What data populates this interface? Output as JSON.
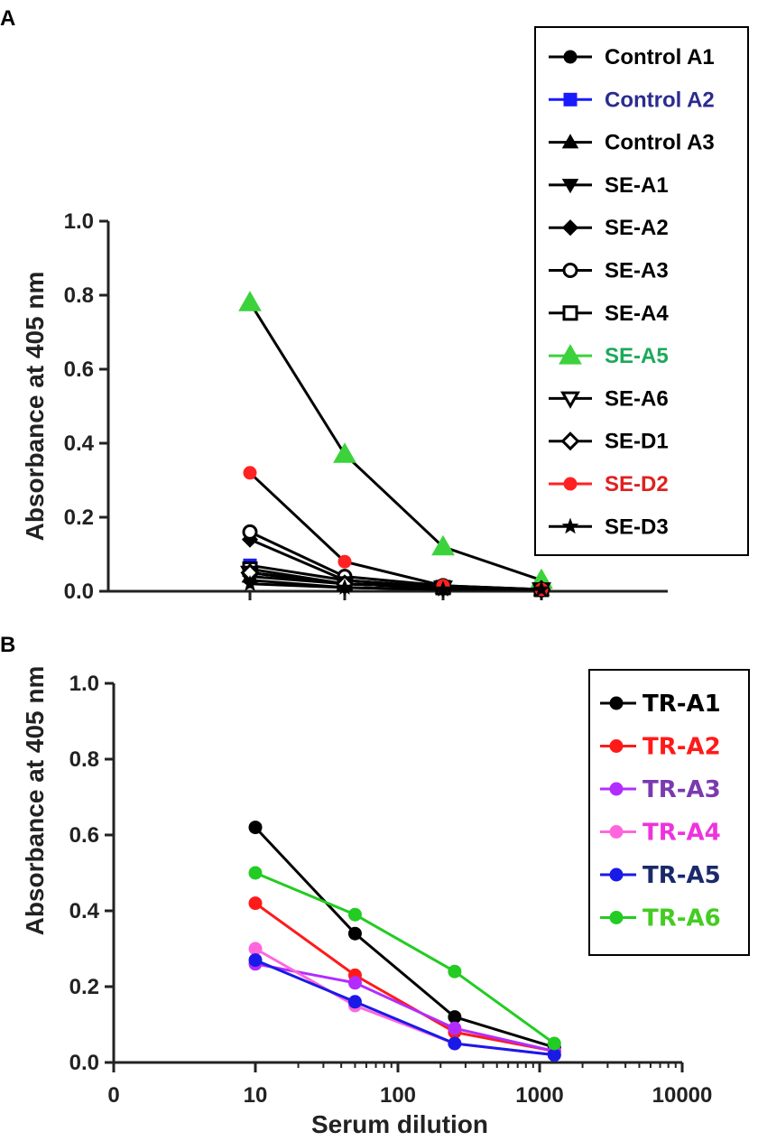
{
  "chart_data": [
    {
      "panel": "A",
      "type": "line",
      "ylabel": "Absorbance at 405 nm",
      "xlabel": "",
      "ylim": [
        0,
        1.0
      ],
      "yticks": [
        "0.0",
        "0.2",
        "0.4",
        "0.6",
        "0.8",
        "1.0"
      ],
      "x": [
        10,
        50,
        250,
        1250
      ],
      "legend_position": "top-right",
      "series": [
        {
          "name": "Control A1",
          "marker": "circle",
          "color": "#000000",
          "text_color": "#000000",
          "values": [
            0.05,
            0.02,
            0.01,
            0.005
          ]
        },
        {
          "name": "Control A2",
          "marker": "square",
          "color": "#1a1aff",
          "text_color": "#2b2b8f",
          "values": [
            0.07,
            0.03,
            0.01,
            0.005
          ]
        },
        {
          "name": "Control A3",
          "marker": "triangle-up",
          "color": "#000000",
          "text_color": "#000000",
          "values": [
            0.04,
            0.02,
            0.01,
            0.005
          ]
        },
        {
          "name": "SE-A1",
          "marker": "triangle-down",
          "color": "#000000",
          "text_color": "#000000",
          "values": [
            0.03,
            0.01,
            0.005,
            0.005
          ]
        },
        {
          "name": "SE-A2",
          "marker": "diamond",
          "color": "#000000",
          "text_color": "#000000",
          "values": [
            0.14,
            0.03,
            0.01,
            0.005
          ]
        },
        {
          "name": "SE-A3",
          "marker": "circle-open",
          "color": "#000000",
          "text_color": "#000000",
          "values": [
            0.16,
            0.04,
            0.015,
            0.005
          ]
        },
        {
          "name": "SE-A4",
          "marker": "square-open",
          "color": "#000000",
          "text_color": "#000000",
          "values": [
            0.06,
            0.02,
            0.01,
            0.005
          ]
        },
        {
          "name": "SE-A5",
          "marker": "triangle-up",
          "color": "#3cd23c",
          "text_color": "#1aaa5a",
          "values": [
            0.78,
            0.37,
            0.12,
            0.03
          ]
        },
        {
          "name": "SE-A6",
          "marker": "triangle-down-open",
          "color": "#000000",
          "text_color": "#000000",
          "values": [
            0.05,
            0.02,
            0.01,
            0.005
          ]
        },
        {
          "name": "SE-D1",
          "marker": "diamond-open",
          "color": "#000000",
          "text_color": "#000000",
          "values": [
            0.05,
            0.02,
            0.01,
            0.005
          ]
        },
        {
          "name": "SE-D2",
          "marker": "circle",
          "color": "#ff2222",
          "text_color": "#e02020",
          "values": [
            0.32,
            0.08,
            0.015,
            0.005
          ]
        },
        {
          "name": "SE-D3",
          "marker": "star",
          "color": "#000000",
          "text_color": "#000000",
          "values": [
            0.02,
            0.01,
            0.005,
            0.005
          ]
        }
      ]
    },
    {
      "panel": "B",
      "type": "line",
      "ylabel": "Absorbance at 405 nm",
      "xlabel": "Serum dilution",
      "xscale": "log",
      "xticks": [
        "0",
        "10",
        "100",
        "1000",
        "10000"
      ],
      "ylim": [
        0,
        1.0
      ],
      "yticks": [
        "0.0",
        "0.2",
        "0.4",
        "0.6",
        "0.8",
        "1.0"
      ],
      "x": [
        10,
        50,
        250,
        1250
      ],
      "legend_position": "top-right",
      "series": [
        {
          "name": "TR-A1",
          "color": "#000000",
          "text_color": "#000000",
          "values": [
            0.62,
            0.34,
            0.12,
            0.04
          ]
        },
        {
          "name": "TR-A2",
          "color": "#ff1a1a",
          "text_color": "#ff1a1a",
          "values": [
            0.42,
            0.23,
            0.08,
            0.03
          ]
        },
        {
          "name": "TR-A3",
          "color": "#b32cff",
          "text_color": "#7a3ab0",
          "values": [
            0.26,
            0.21,
            0.09,
            0.03
          ]
        },
        {
          "name": "TR-A4",
          "color": "#ff66dd",
          "text_color": "#ee33dd",
          "values": [
            0.3,
            0.15,
            0.05,
            0.02
          ]
        },
        {
          "name": "TR-A5",
          "color": "#1a1ae6",
          "text_color": "#1a2a6a",
          "values": [
            0.27,
            0.16,
            0.05,
            0.02
          ]
        },
        {
          "name": "TR-A6",
          "color": "#22cc22",
          "text_color": "#44cc22",
          "values": [
            0.5,
            0.39,
            0.24,
            0.05
          ]
        }
      ]
    }
  ]
}
